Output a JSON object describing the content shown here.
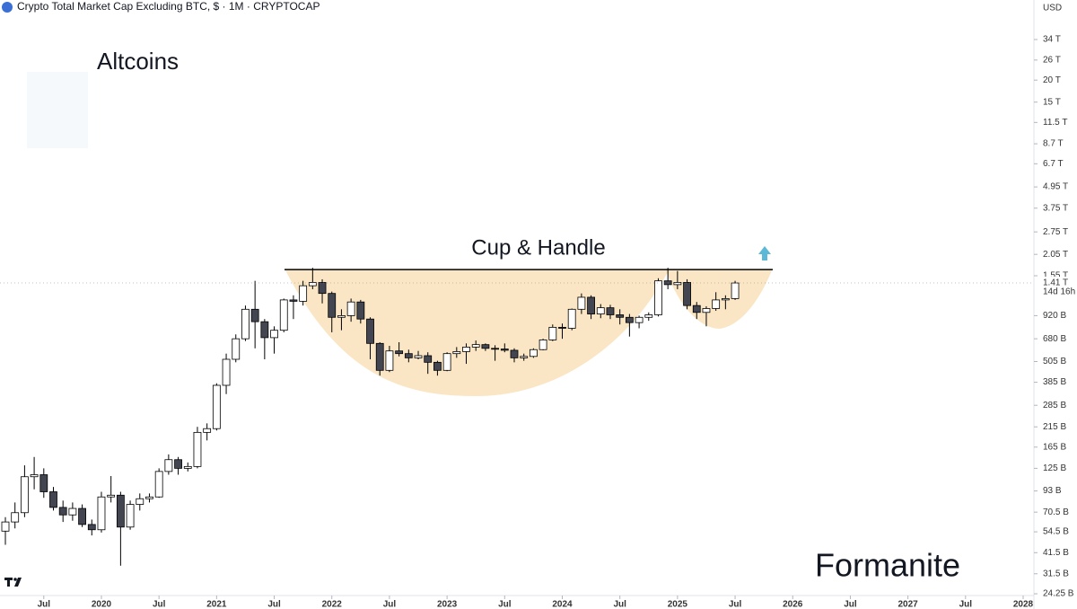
{
  "chart_data": {
    "type": "candlestick",
    "title": "Crypto Total Market Cap Excluding BTC, $ · 1M · CRYPTOCAP",
    "currency": "USD",
    "heading": "Altcoins",
    "annotation": "Cup & Handle",
    "watermark": "Formanite",
    "countdown": "14d 16h",
    "last_price": {
      "value": 1410,
      "label": "1.41 T"
    },
    "resistance_level": 1680,
    "log_scale": true,
    "up_color": "#ffffff",
    "down_color": "#434651",
    "border_color": "#000000",
    "x": [
      "2019-03",
      "2019-04",
      "2019-05",
      "2019-06",
      "2019-07",
      "2019-08",
      "2019-09",
      "2019-10",
      "2019-11",
      "2019-12",
      "2020-01",
      "2020-02",
      "2020-03",
      "2020-04",
      "2020-05",
      "2020-06",
      "2020-07",
      "2020-08",
      "2020-09",
      "2020-10",
      "2020-11",
      "2020-12",
      "2021-01",
      "2021-02",
      "2021-03",
      "2021-04",
      "2021-05",
      "2021-06",
      "2021-07",
      "2021-08",
      "2021-09",
      "2021-10",
      "2021-11",
      "2021-12",
      "2022-01",
      "2022-02",
      "2022-03",
      "2022-04",
      "2022-05",
      "2022-06",
      "2022-07",
      "2022-08",
      "2022-09",
      "2022-10",
      "2022-11",
      "2022-12",
      "2023-01",
      "2023-02",
      "2023-03",
      "2023-04",
      "2023-05",
      "2023-06",
      "2023-07",
      "2023-08",
      "2023-09",
      "2023-10",
      "2023-11",
      "2023-12",
      "2024-01",
      "2024-02",
      "2024-03",
      "2024-04",
      "2024-05",
      "2024-06",
      "2024-07",
      "2024-08",
      "2024-09",
      "2024-10",
      "2024-11",
      "2024-12",
      "2025-01",
      "2025-02",
      "2025-03",
      "2025-04",
      "2025-05",
      "2025-06",
      "2025-07"
    ],
    "open": [
      55,
      62,
      70,
      112,
      115,
      92,
      75,
      68,
      74,
      60,
      56,
      86,
      88,
      58,
      78,
      84,
      86,
      120,
      140,
      125,
      128,
      200,
      210,
      370,
      520,
      680,
      1000,
      850,
      690,
      760,
      1130,
      1110,
      1360,
      1420,
      1230,
      900,
      920,
      1100,
      880,
      640,
      450,
      580,
      560,
      530,
      545,
      500,
      450,
      560,
      575,
      610,
      630,
      600,
      595,
      585,
      530,
      540,
      590,
      670,
      790,
      780,
      1000,
      1170,
      940,
      1020,
      930,
      900,
      840,
      900,
      930,
      1450,
      1380,
      1420,
      1050,
      960,
      1010,
      1130,
      1150
    ],
    "high": [
      66,
      80,
      130,
      145,
      125,
      98,
      82,
      80,
      78,
      64,
      92,
      113,
      92,
      82,
      90,
      90,
      125,
      150,
      145,
      135,
      215,
      225,
      380,
      560,
      720,
      1050,
      1450,
      880,
      800,
      1150,
      1200,
      1450,
      1720,
      1480,
      1260,
      1000,
      1150,
      1130,
      900,
      650,
      620,
      650,
      590,
      580,
      570,
      510,
      570,
      610,
      640,
      665,
      640,
      625,
      640,
      600,
      560,
      600,
      680,
      820,
      830,
      1010,
      1230,
      1200,
      1070,
      1060,
      1000,
      940,
      920,
      960,
      1500,
      1720,
      1650,
      1480,
      1100,
      1040,
      1250,
      1200,
      1450
    ],
    "low": [
      46,
      57,
      66,
      95,
      85,
      72,
      62,
      63,
      58,
      52,
      54,
      80,
      35,
      56,
      72,
      80,
      85,
      115,
      115,
      120,
      125,
      180,
      205,
      330,
      500,
      660,
      600,
      520,
      560,
      740,
      880,
      1050,
      1300,
      1080,
      740,
      760,
      850,
      830,
      520,
      420,
      440,
      540,
      500,
      520,
      430,
      420,
      445,
      530,
      490,
      580,
      580,
      510,
      570,
      500,
      510,
      530,
      585,
      660,
      680,
      760,
      940,
      880,
      890,
      880,
      820,
      700,
      780,
      860,
      910,
      1300,
      1300,
      1000,
      880,
      800,
      980,
      1000,
      1130
    ],
    "close": [
      62,
      70,
      112,
      115,
      92,
      75,
      68,
      74,
      60,
      56,
      86,
      88,
      58,
      78,
      84,
      86,
      120,
      140,
      125,
      128,
      200,
      210,
      370,
      520,
      680,
      1000,
      850,
      690,
      760,
      1130,
      1110,
      1360,
      1420,
      1230,
      900,
      920,
      1100,
      880,
      640,
      450,
      580,
      560,
      530,
      545,
      500,
      450,
      560,
      575,
      610,
      630,
      600,
      595,
      585,
      530,
      540,
      590,
      670,
      790,
      780,
      1000,
      1170,
      940,
      1020,
      930,
      900,
      840,
      900,
      930,
      1450,
      1380,
      1420,
      1050,
      960,
      1010,
      1130,
      1150,
      1410
    ],
    "xlim": [
      "2019-03",
      "2028-01"
    ],
    "xticks": [
      {
        "value": "2019-07",
        "label": "Jul"
      },
      {
        "value": "2020-01",
        "label": "2020"
      },
      {
        "value": "2020-07",
        "label": "Jul"
      },
      {
        "value": "2021-01",
        "label": "2021"
      },
      {
        "value": "2021-07",
        "label": "Jul"
      },
      {
        "value": "2022-01",
        "label": "2022"
      },
      {
        "value": "2022-07",
        "label": "Jul"
      },
      {
        "value": "2023-01",
        "label": "2023"
      },
      {
        "value": "2023-07",
        "label": "Jul"
      },
      {
        "value": "2024-01",
        "label": "2024"
      },
      {
        "value": "2024-07",
        "label": "Jul"
      },
      {
        "value": "2025-01",
        "label": "2025"
      },
      {
        "value": "2025-07",
        "label": "Jul"
      },
      {
        "value": "2026-01",
        "label": "2026"
      },
      {
        "value": "2026-07",
        "label": "Jul"
      },
      {
        "value": "2027-01",
        "label": "2027"
      },
      {
        "value": "2027-07",
        "label": "Jul"
      },
      {
        "value": "2028-01",
        "label": "2028"
      }
    ],
    "ylim": [
      23.7,
      57000
    ],
    "yticks": [
      {
        "value": 34000,
        "label": "34 T"
      },
      {
        "value": 26000,
        "label": "26 T"
      },
      {
        "value": 20000,
        "label": "20 T"
      },
      {
        "value": 15000,
        "label": "15 T"
      },
      {
        "value": 11500,
        "label": "11.5 T"
      },
      {
        "value": 8700,
        "label": "8.7 T"
      },
      {
        "value": 6700,
        "label": "6.7 T"
      },
      {
        "value": 4950,
        "label": "4.95 T"
      },
      {
        "value": 3750,
        "label": "3.75 T"
      },
      {
        "value": 2750,
        "label": "2.75 T"
      },
      {
        "value": 2050,
        "label": "2.05 T"
      },
      {
        "value": 1550,
        "label": "1.55 T"
      },
      {
        "value": 920,
        "label": "920 B"
      },
      {
        "value": 680,
        "label": "680 B"
      },
      {
        "value": 505,
        "label": "505 B"
      },
      {
        "value": 385,
        "label": "385 B"
      },
      {
        "value": 285,
        "label": "285 B"
      },
      {
        "value": 215,
        "label": "215 B"
      },
      {
        "value": 165,
        "label": "165 B"
      },
      {
        "value": 125,
        "label": "125 B"
      },
      {
        "value": 93,
        "label": "93 B"
      },
      {
        "value": 70.5,
        "label": "70.5 B"
      },
      {
        "value": 54.5,
        "label": "54.5 B"
      },
      {
        "value": 41.5,
        "label": "41.5 B"
      },
      {
        "value": 31.5,
        "label": "31.5 B"
      },
      {
        "value": 24.25,
        "label": "24.25 B"
      }
    ]
  }
}
